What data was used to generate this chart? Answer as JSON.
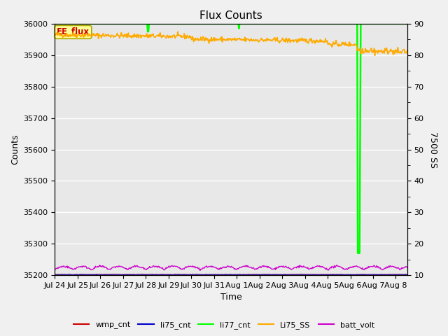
{
  "title": "Flux Counts",
  "xlabel": "Time",
  "ylabel_left": "Counts",
  "ylabel_right": "7500 SS",
  "annotation_text": "EE_flux",
  "annotation_color": "#cc0000",
  "annotation_bg": "#ffff99",
  "annotation_border": "#aaaa00",
  "ylim_left": [
    35200,
    36000
  ],
  "ylim_right": [
    10,
    90
  ],
  "x_tick_labels": [
    "Jul 24",
    "Jul 25",
    "Jul 26",
    "Jul 27",
    "Jul 28",
    "Jul 29",
    "Jul 30",
    "Jul 31",
    "Aug 1",
    "Aug 2",
    "Aug 3",
    "Aug 4",
    "Aug 5",
    "Aug 6",
    "Aug 7",
    "Aug 8"
  ],
  "bg_color": "#f0f0f0",
  "plot_bg_color": "#e8e8e8",
  "grid_color": "white",
  "line_colors": {
    "wmp_cnt": "#cc0000",
    "li75_cnt": "#0000cc",
    "li77_cnt": "#00ff00",
    "Li75_SS": "#ffaa00",
    "batt_volt": "#cc00cc"
  },
  "legend_labels": [
    "wmp_cnt",
    "li75_cnt",
    "li77_cnt",
    "Li75_SS",
    "batt_volt"
  ]
}
